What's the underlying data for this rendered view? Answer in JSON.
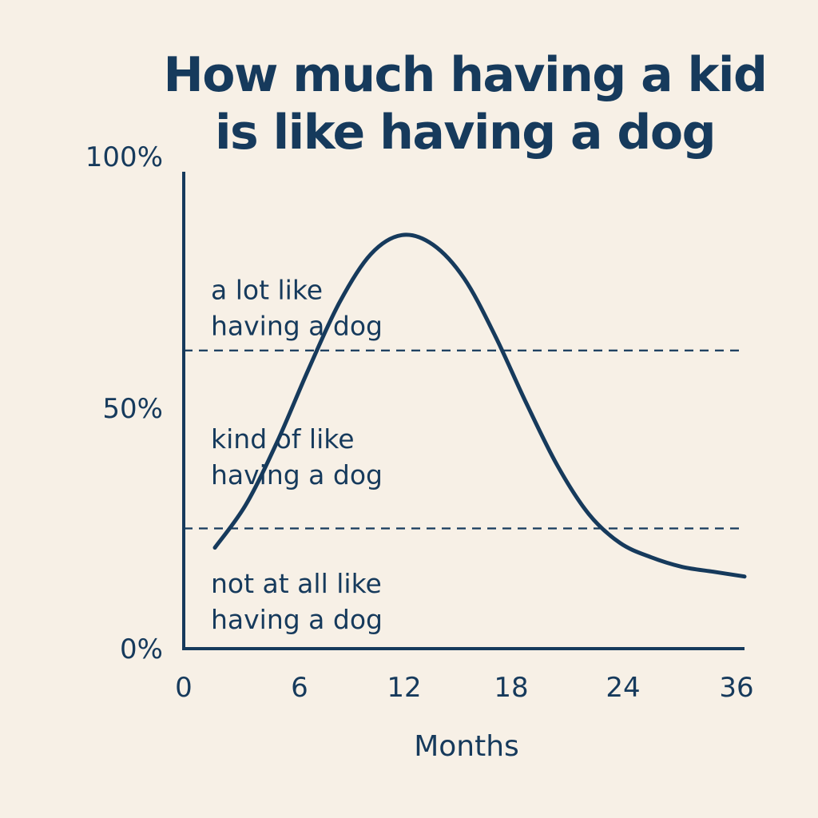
{
  "chart_data": {
    "type": "line",
    "title_lines": [
      "How much having a kid",
      "is like having a dog"
    ],
    "xlabel": "Months",
    "ylabel": "",
    "xlim": [
      0,
      36
    ],
    "ylim": [
      0,
      100
    ],
    "x_ticks": [
      {
        "value": 0,
        "label": "0"
      },
      {
        "value": 6,
        "label": "6"
      },
      {
        "value": 12,
        "label": "12"
      },
      {
        "value": 18,
        "label": "18"
      },
      {
        "value": 24,
        "label": "24"
      },
      {
        "value": 36,
        "label": "36"
      }
    ],
    "y_ticks": [
      {
        "value": 0,
        "label": "0%"
      },
      {
        "value": 50,
        "label": "50%"
      },
      {
        "value": 100,
        "label": "100%"
      }
    ],
    "thresholds": [
      {
        "value": 25
      },
      {
        "value": 62
      }
    ],
    "bands": [
      {
        "lines": [
          "a lot like",
          "having a dog"
        ],
        "anchor_value": 71
      },
      {
        "lines": [
          "kind of like",
          "having a dog"
        ],
        "anchor_value": 40
      },
      {
        "lines": [
          "not at all like",
          "having a dog"
        ],
        "anchor_value": 10
      }
    ],
    "series": [
      {
        "x": [
          2,
          4,
          6,
          8,
          10,
          12,
          14,
          16,
          18,
          20,
          22,
          24,
          26,
          28,
          30,
          32,
          34,
          36
        ],
        "y": [
          21,
          30,
          43,
          58,
          72,
          82,
          86,
          84,
          77,
          65,
          51,
          38,
          28,
          22,
          19,
          17,
          16,
          15
        ]
      }
    ],
    "grid": false,
    "legend": "none",
    "colors": {
      "line": "#163a5c",
      "axis": "#163a5c",
      "background": "#f7f0e6"
    }
  }
}
